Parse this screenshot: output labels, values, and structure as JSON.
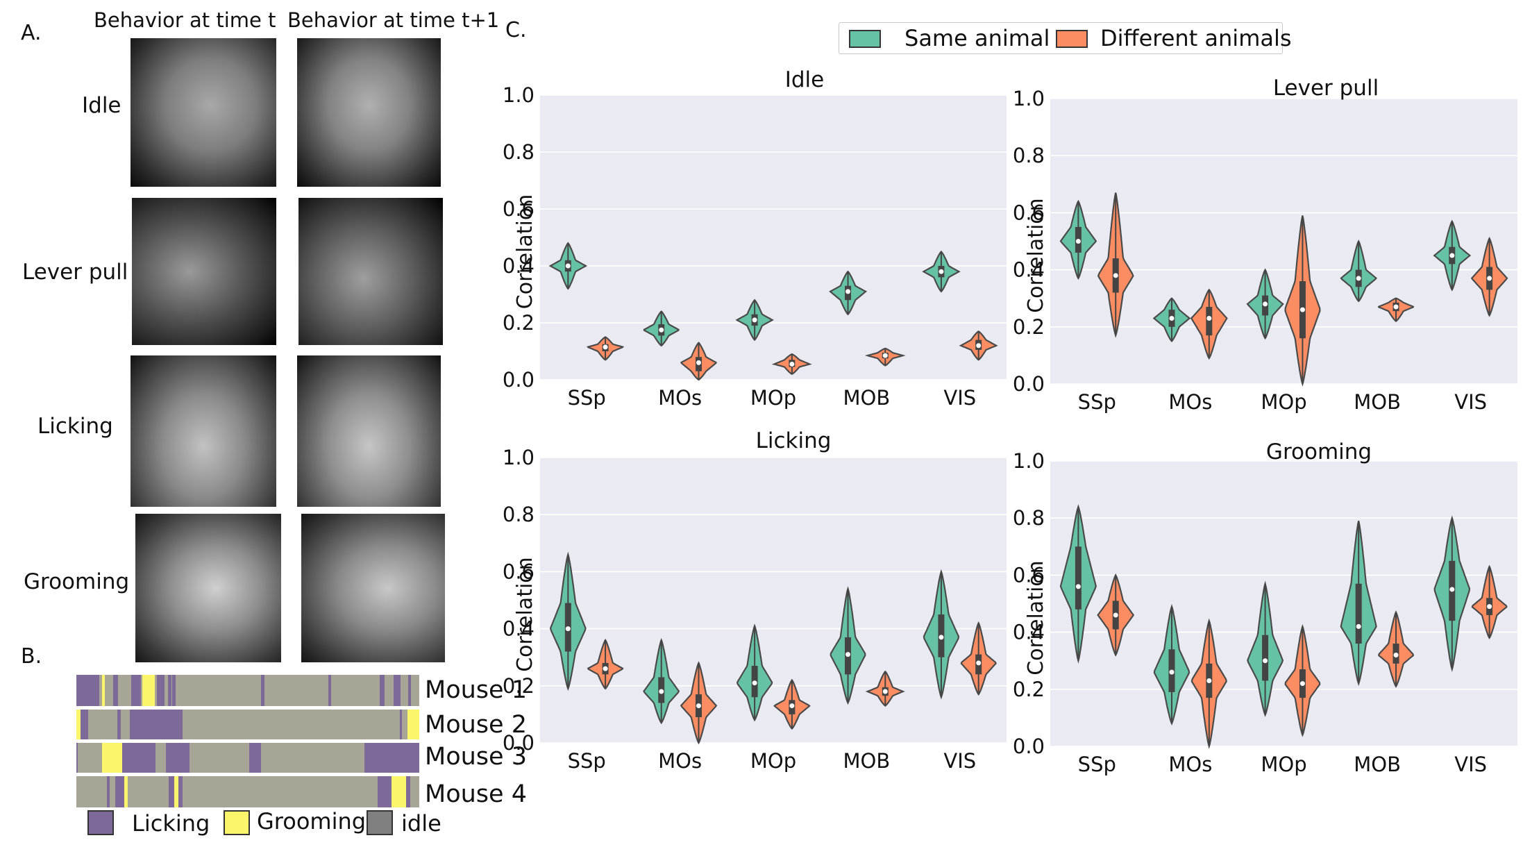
{
  "panel_a": {
    "letter": "A.",
    "col_headers": [
      "Behavior at time t",
      "Behavior at time t+1"
    ],
    "rows": [
      {
        "label": "Idle"
      },
      {
        "label": "Lever pull"
      },
      {
        "label": "Licking"
      },
      {
        "label": "Grooming"
      }
    ]
  },
  "panel_b": {
    "letter": "B.",
    "colors": {
      "licking": "#7e6a98",
      "grooming": "#fbf56b",
      "idle": "#a7a595",
      "idle_legend": "#808080"
    },
    "mice": [
      {
        "label": "Mouse 1",
        "segments": [
          [
            0,
            0.066,
            "licking"
          ],
          [
            0.075,
            0.083,
            "grooming"
          ],
          [
            0.107,
            0.122,
            "licking"
          ],
          [
            0.16,
            0.188,
            "licking"
          ],
          [
            0.193,
            0.228,
            "grooming"
          ],
          [
            0.235,
            0.258,
            "licking"
          ],
          [
            0.268,
            0.278,
            "licking"
          ],
          [
            0.28,
            0.29,
            "licking"
          ],
          [
            0.538,
            0.548,
            "licking"
          ],
          [
            0.735,
            0.743,
            "licking"
          ],
          [
            0.885,
            0.899,
            "licking"
          ],
          [
            0.925,
            0.945,
            "licking"
          ],
          [
            0.968,
            0.976,
            "licking"
          ]
        ]
      },
      {
        "label": "Mouse 2",
        "segments": [
          [
            0,
            0.012,
            "grooming"
          ],
          [
            0.012,
            0.035,
            "licking"
          ],
          [
            0.12,
            0.13,
            "licking"
          ],
          [
            0.155,
            0.31,
            "licking"
          ],
          [
            0.944,
            0.95,
            "licking"
          ],
          [
            0.965,
            1,
            "grooming"
          ]
        ]
      },
      {
        "label": "Mouse 3",
        "segments": [
          [
            0,
            0.004,
            "licking"
          ],
          [
            0.075,
            0.133,
            "grooming"
          ],
          [
            0.133,
            0.23,
            "licking"
          ],
          [
            0.262,
            0.33,
            "licking"
          ],
          [
            0.504,
            0.538,
            "licking"
          ],
          [
            0.84,
            1,
            "licking"
          ]
        ]
      },
      {
        "label": "Mouse 4",
        "segments": [
          [
            0.09,
            0.097,
            "licking"
          ],
          [
            0.113,
            0.14,
            "licking"
          ],
          [
            0.14,
            0.149,
            "grooming"
          ],
          [
            0.27,
            0.285,
            "licking"
          ],
          [
            0.285,
            0.297,
            "grooming"
          ],
          [
            0.297,
            0.31,
            "licking"
          ],
          [
            0.878,
            0.92,
            "licking"
          ],
          [
            0.92,
            0.962,
            "grooming"
          ],
          [
            0.962,
            0.974,
            "licking"
          ]
        ]
      }
    ],
    "legend": [
      {
        "key": "licking",
        "label": "Licking"
      },
      {
        "key": "grooming",
        "label": "Grooming"
      },
      {
        "key": "idle_legend",
        "label": "idle"
      }
    ]
  },
  "panel_c": {
    "letter": "C.",
    "legend": [
      "Same animal",
      "Different animals"
    ]
  },
  "chart_data": [
    {
      "type": "violin",
      "title": "Idle",
      "ylabel": "Correlation",
      "ylim": [
        0,
        1
      ],
      "yticks": [
        "0.0",
        "0.2",
        "0.4",
        "0.6",
        "0.8",
        "1.0"
      ],
      "categories": [
        "SSp",
        "MOs",
        "MOp",
        "MOB",
        "VIS"
      ],
      "grid": true,
      "colors": {
        "Same animal": "#66c2a5",
        "Different animals": "#fc8d62"
      },
      "series": [
        {
          "name": "Same animal",
          "values": [
            {
              "min": 0.32,
              "q1": 0.38,
              "median": 0.4,
              "q3": 0.42,
              "max": 0.48
            },
            {
              "min": 0.12,
              "q1": 0.155,
              "median": 0.175,
              "q3": 0.195,
              "max": 0.24
            },
            {
              "min": 0.14,
              "q1": 0.19,
              "median": 0.21,
              "q3": 0.23,
              "max": 0.28
            },
            {
              "min": 0.23,
              "q1": 0.28,
              "median": 0.31,
              "q3": 0.33,
              "max": 0.38
            },
            {
              "min": 0.31,
              "q1": 0.36,
              "median": 0.38,
              "q3": 0.4,
              "max": 0.45
            }
          ]
        },
        {
          "name": "Different animals",
          "values": [
            {
              "min": 0.07,
              "q1": 0.1,
              "median": 0.115,
              "q3": 0.125,
              "max": 0.15
            },
            {
              "min": 0.0,
              "q1": 0.03,
              "median": 0.06,
              "q3": 0.08,
              "max": 0.13
            },
            {
              "min": 0.02,
              "q1": 0.045,
              "median": 0.055,
              "q3": 0.07,
              "max": 0.09
            },
            {
              "min": 0.05,
              "q1": 0.075,
              "median": 0.085,
              "q3": 0.095,
              "max": 0.11
            },
            {
              "min": 0.07,
              "q1": 0.105,
              "median": 0.12,
              "q3": 0.14,
              "max": 0.17
            }
          ]
        }
      ]
    },
    {
      "type": "violin",
      "title": "Lever pull",
      "ylabel": "Correlation",
      "ylim": [
        0,
        1
      ],
      "yticks": [
        "0.0",
        "0.2",
        "0.4",
        "0.6",
        "0.8",
        "1.0"
      ],
      "categories": [
        "SSp",
        "MOs",
        "MOp",
        "MOB",
        "VIS"
      ],
      "grid": true,
      "colors": {
        "Same animal": "#66c2a5",
        "Different animals": "#fc8d62"
      },
      "series": [
        {
          "name": "Same animal",
          "values": [
            {
              "min": 0.37,
              "q1": 0.46,
              "median": 0.5,
              "q3": 0.55,
              "max": 0.64
            },
            {
              "min": 0.15,
              "q1": 0.2,
              "median": 0.23,
              "q3": 0.26,
              "max": 0.3
            },
            {
              "min": 0.16,
              "q1": 0.24,
              "median": 0.28,
              "q3": 0.31,
              "max": 0.4
            },
            {
              "min": 0.29,
              "q1": 0.34,
              "median": 0.37,
              "q3": 0.4,
              "max": 0.5
            },
            {
              "min": 0.33,
              "q1": 0.42,
              "median": 0.45,
              "q3": 0.48,
              "max": 0.57
            }
          ]
        },
        {
          "name": "Different animals",
          "values": [
            {
              "min": 0.17,
              "q1": 0.32,
              "median": 0.38,
              "q3": 0.44,
              "max": 0.67
            },
            {
              "min": 0.09,
              "q1": 0.17,
              "median": 0.23,
              "q3": 0.27,
              "max": 0.33
            },
            {
              "min": 0.0,
              "q1": 0.16,
              "median": 0.26,
              "q3": 0.36,
              "max": 0.59
            },
            {
              "min": 0.22,
              "q1": 0.255,
              "median": 0.27,
              "q3": 0.285,
              "max": 0.3
            },
            {
              "min": 0.24,
              "q1": 0.33,
              "median": 0.37,
              "q3": 0.41,
              "max": 0.51
            }
          ]
        }
      ]
    },
    {
      "type": "violin",
      "title": "Licking",
      "ylabel": "Correlation",
      "ylim": [
        0,
        1
      ],
      "yticks": [
        "0.0",
        "0.2",
        "0.4",
        "0.6",
        "0.8",
        "1.0"
      ],
      "categories": [
        "SSp",
        "MOs",
        "MOp",
        "MOB",
        "VIS"
      ],
      "grid": true,
      "colors": {
        "Same animal": "#66c2a5",
        "Different animals": "#fc8d62"
      },
      "series": [
        {
          "name": "Same animal",
          "values": [
            {
              "min": 0.19,
              "q1": 0.32,
              "median": 0.4,
              "q3": 0.49,
              "max": 0.66
            },
            {
              "min": 0.07,
              "q1": 0.14,
              "median": 0.18,
              "q3": 0.23,
              "max": 0.36
            },
            {
              "min": 0.08,
              "q1": 0.16,
              "median": 0.21,
              "q3": 0.27,
              "max": 0.41
            },
            {
              "min": 0.14,
              "q1": 0.24,
              "median": 0.31,
              "q3": 0.37,
              "max": 0.54
            },
            {
              "min": 0.16,
              "q1": 0.3,
              "median": 0.37,
              "q3": 0.45,
              "max": 0.6
            }
          ]
        },
        {
          "name": "Different animals",
          "values": [
            {
              "min": 0.19,
              "q1": 0.24,
              "median": 0.26,
              "q3": 0.28,
              "max": 0.36
            },
            {
              "min": 0.0,
              "q1": 0.09,
              "median": 0.13,
              "q3": 0.17,
              "max": 0.28
            },
            {
              "min": 0.05,
              "q1": 0.1,
              "median": 0.13,
              "q3": 0.15,
              "max": 0.22
            },
            {
              "min": 0.13,
              "q1": 0.165,
              "median": 0.18,
              "q3": 0.195,
              "max": 0.25
            },
            {
              "min": 0.17,
              "q1": 0.24,
              "median": 0.28,
              "q3": 0.31,
              "max": 0.42
            }
          ]
        }
      ]
    },
    {
      "type": "violin",
      "title": "Grooming",
      "ylabel": "Correlation",
      "ylim": [
        0,
        1
      ],
      "yticks": [
        "0.0",
        "0.2",
        "0.4",
        "0.6",
        "0.8",
        "1.0"
      ],
      "categories": [
        "SSp",
        "MOs",
        "MOp",
        "MOB",
        "VIS"
      ],
      "grid": true,
      "colors": {
        "Same animal": "#66c2a5",
        "Different animals": "#fc8d62"
      },
      "series": [
        {
          "name": "Same animal",
          "values": [
            {
              "min": 0.3,
              "q1": 0.48,
              "median": 0.56,
              "q3": 0.7,
              "max": 0.84
            },
            {
              "min": 0.08,
              "q1": 0.19,
              "median": 0.26,
              "q3": 0.34,
              "max": 0.49
            },
            {
              "min": 0.11,
              "q1": 0.23,
              "median": 0.3,
              "q3": 0.39,
              "max": 0.57
            },
            {
              "min": 0.22,
              "q1": 0.36,
              "median": 0.42,
              "q3": 0.57,
              "max": 0.79
            },
            {
              "min": 0.27,
              "q1": 0.44,
              "median": 0.55,
              "q3": 0.65,
              "max": 0.8
            }
          ]
        },
        {
          "name": "Different animals",
          "values": [
            {
              "min": 0.32,
              "q1": 0.41,
              "median": 0.46,
              "q3": 0.51,
              "max": 0.6
            },
            {
              "min": 0.0,
              "q1": 0.17,
              "median": 0.23,
              "q3": 0.29,
              "max": 0.44
            },
            {
              "min": 0.04,
              "q1": 0.17,
              "median": 0.22,
              "q3": 0.27,
              "max": 0.42
            },
            {
              "min": 0.21,
              "q1": 0.29,
              "median": 0.32,
              "q3": 0.36,
              "max": 0.47
            },
            {
              "min": 0.38,
              "q1": 0.46,
              "median": 0.49,
              "q3": 0.52,
              "max": 0.63
            }
          ]
        }
      ]
    }
  ]
}
